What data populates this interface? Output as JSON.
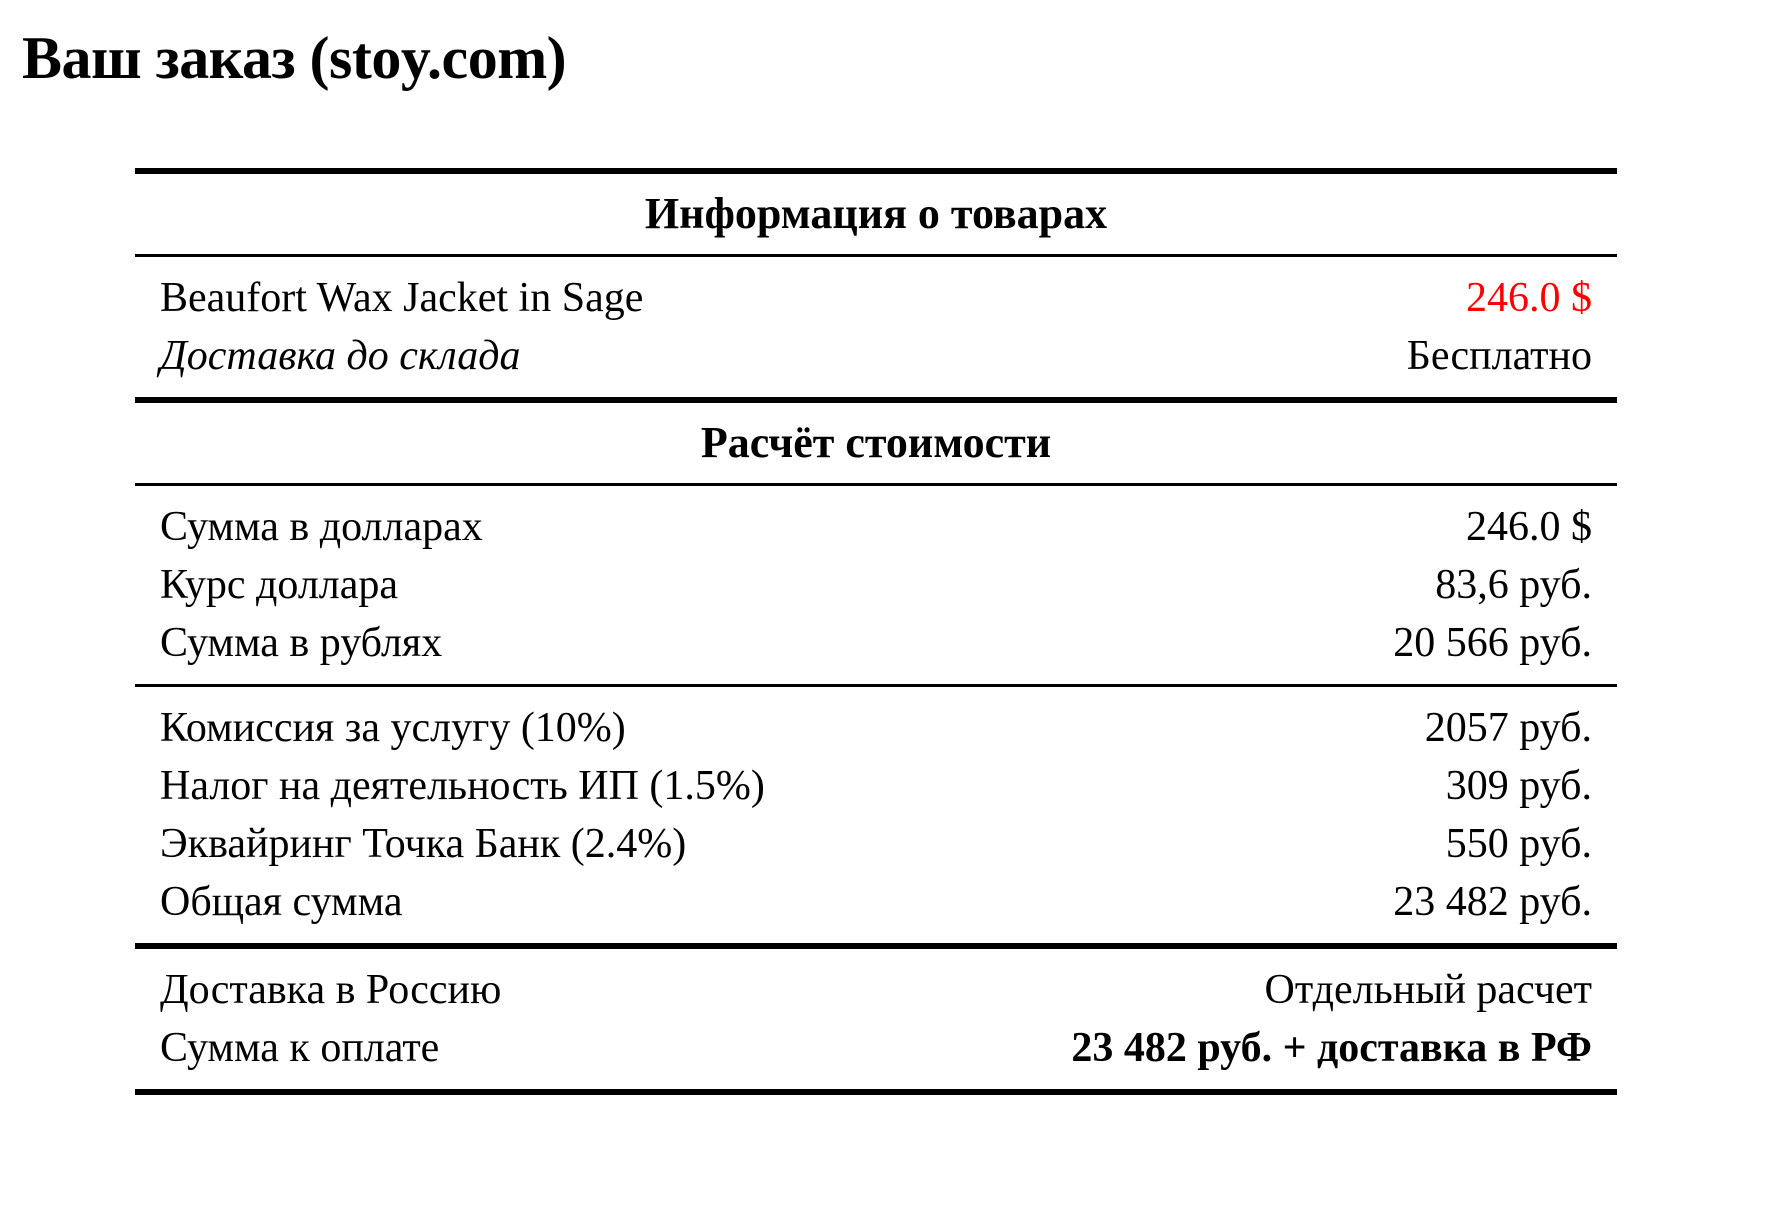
{
  "page": {
    "title": "Ваш заказ (stoy.com)"
  },
  "colors": {
    "background": "#ffffff",
    "text": "#000000",
    "rule": "#000000",
    "price_red": "#ff0000"
  },
  "order_table": {
    "products_section": {
      "header": "Информация о товарах",
      "product_row": {
        "label": "Beaufort Wax Jacket in Sage",
        "value": "246.0 $"
      },
      "warehouse_delivery_row": {
        "label": "Доставка до склада",
        "value": "Бесплатно"
      }
    },
    "cost_section": {
      "header": "Расчёт стоимости",
      "usd_sum_row": {
        "label": "Сумма в долларах",
        "value": "246.0 $"
      },
      "usd_rate_row": {
        "label": "Курс доллара",
        "value": "83,6 руб."
      },
      "rub_sum_row": {
        "label": "Сумма в рублях",
        "value": "20 566 руб."
      },
      "commission_row": {
        "label": "Комиссия за услугу (10%)",
        "value": "2057 руб."
      },
      "tax_row": {
        "label": "Налог на деятельность ИП (1.5%)",
        "value": "309 руб."
      },
      "acquiring_row": {
        "label": "Эквайринг Точка Банк (2.4%)",
        "value": "550 руб."
      },
      "total_row": {
        "label": "Общая сумма",
        "value": "23 482 руб."
      }
    },
    "summary_section": {
      "ru_delivery_row": {
        "label": "Доставка в Россию",
        "value": "Отдельный расчет"
      },
      "payable_row": {
        "label": "Сумма к оплате",
        "value": "23 482 руб. + доставка в РФ"
      }
    }
  }
}
